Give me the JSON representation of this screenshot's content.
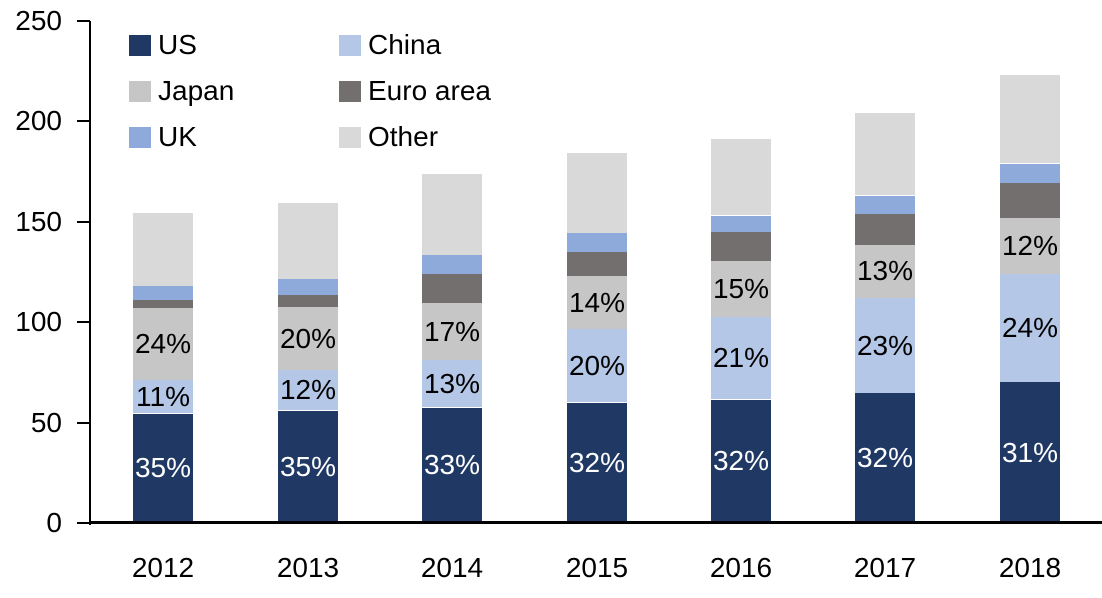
{
  "chart_data": {
    "type": "bar",
    "stacked": true,
    "title": "",
    "xlabel": "",
    "ylabel": "",
    "ylim": [
      0,
      250
    ],
    "yticks": [
      0,
      50,
      100,
      150,
      200,
      250
    ],
    "ytick_labels": [
      "0",
      "50",
      "100",
      "150",
      "200",
      "250"
    ],
    "grid": false,
    "legend_position": "top-left",
    "legend_columns": 2,
    "categories": [
      "2012",
      "2013",
      "2014",
      "2015",
      "2016",
      "2017",
      "2018"
    ],
    "totals": [
      154.5,
      159.5,
      174,
      184.5,
      191,
      204,
      223
    ],
    "series": [
      {
        "name": "US",
        "key": "us",
        "color": "#1F3864",
        "label_color": "#FFFFFF",
        "values": [
          54.5,
          56,
          57.5,
          60,
          61.5,
          64.5,
          70
        ],
        "labels": [
          "35%",
          "35%",
          "33%",
          "32%",
          "32%",
          "32%",
          "31%"
        ]
      },
      {
        "name": "China",
        "key": "china",
        "color": "#B4C7E7",
        "label_color": "#000000",
        "values": [
          16.5,
          20,
          23.5,
          36.5,
          41,
          47.5,
          54
        ],
        "labels": [
          "11%",
          "12%",
          "13%",
          "20%",
          "21%",
          "23%",
          "24%"
        ]
      },
      {
        "name": "Japan",
        "key": "japan",
        "color": "#C6C6C6",
        "label_color": "#000000",
        "values": [
          36,
          31.5,
          28.5,
          26.5,
          28,
          26.5,
          28
        ],
        "labels": [
          "24%",
          "20%",
          "17%",
          "14%",
          "15%",
          "13%",
          "12%"
        ]
      },
      {
        "name": "Euro area",
        "key": "euro-area",
        "color": "#736F6F",
        "label_color": "#000000",
        "values": [
          4,
          6,
          14.5,
          12,
          14.5,
          15.5,
          17.5
        ],
        "labels": [
          null,
          null,
          null,
          null,
          null,
          null,
          null
        ]
      },
      {
        "name": "UK",
        "key": "uk",
        "color": "#8EAADB",
        "label_color": "#000000",
        "values": [
          7,
          8,
          9.5,
          9.5,
          8,
          9,
          9.5
        ],
        "labels": [
          null,
          null,
          null,
          null,
          null,
          null,
          null
        ]
      },
      {
        "name": "Other",
        "key": "other",
        "color": "#D9D9D9",
        "label_color": "#000000",
        "values": [
          36.5,
          38,
          40.5,
          40,
          38,
          41,
          44
        ],
        "labels": [
          null,
          null,
          null,
          null,
          null,
          null,
          null
        ]
      }
    ],
    "axis_color": "#000000"
  }
}
